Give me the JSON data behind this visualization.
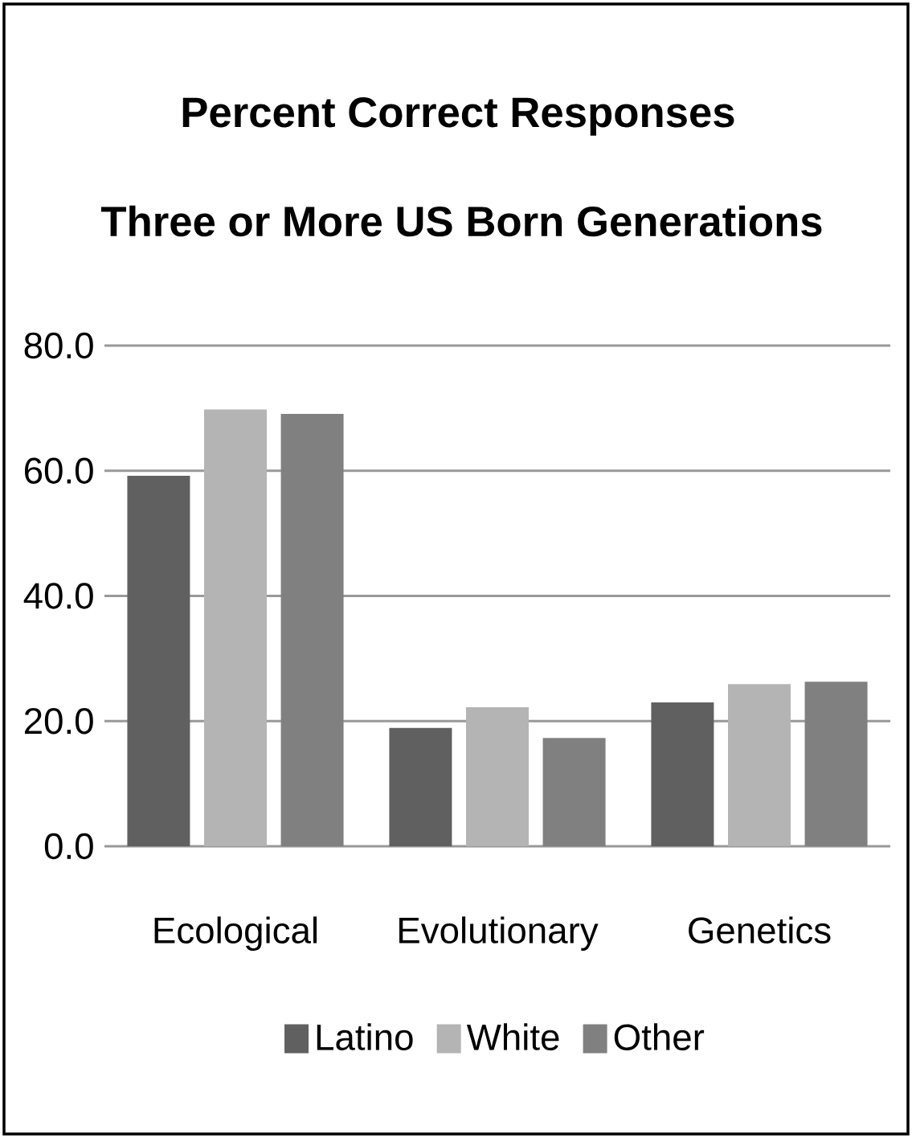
{
  "chart_data": {
    "type": "bar",
    "title": "Percent Correct Responses",
    "subtitle": "Three or More US Born Generations",
    "categories": [
      "Ecological",
      "Evolutionary",
      "Genetics"
    ],
    "series": [
      {
        "name": "Latino",
        "color": "#606060",
        "values": [
          59.2,
          18.9,
          23.0
        ]
      },
      {
        "name": "White",
        "color": "#b4b4b4",
        "values": [
          69.8,
          22.2,
          25.9
        ]
      },
      {
        "name": "Other",
        "color": "#808080",
        "values": [
          69.1,
          17.3,
          26.3
        ]
      }
    ],
    "ylim": [
      0,
      80
    ],
    "yticks": [
      {
        "value": 0,
        "label": "0.0"
      },
      {
        "value": 20,
        "label": "20.0"
      },
      {
        "value": 40,
        "label": "40.0"
      },
      {
        "value": 60,
        "label": "60.0"
      },
      {
        "value": 80,
        "label": "80.0"
      }
    ],
    "grid": "y",
    "legend": "bottom"
  }
}
